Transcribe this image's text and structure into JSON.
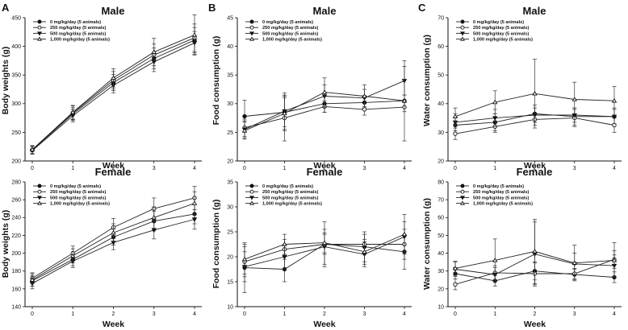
{
  "panel_letters": [
    "A",
    "B",
    "C"
  ],
  "legend_labels": [
    "0 mg/kg/day (5 animals)",
    "250 mg/kg/day (5 animals)",
    "500 mg/kg/day (5 animals)",
    "1,000 mg/kg/day (5 animals)"
  ],
  "chart_data": [
    {
      "type": "line",
      "title": "Male",
      "xlabel": "Week",
      "ylabel": "Body weights (g)",
      "x": [
        0,
        1,
        2,
        3,
        4
      ],
      "ylim": [
        200,
        450
      ],
      "yticks": [
        200,
        250,
        300,
        350,
        400,
        450
      ],
      "legend": "top-left",
      "series": [
        {
          "name": "0 mg/kg/day (5 animals)",
          "marker": "circle-filled",
          "values": [
            219,
            282,
            337,
            379,
            411
          ],
          "errors": [
            7,
            11,
            14,
            18,
            22
          ]
        },
        {
          "name": "250 mg/kg/day (5 animals)",
          "marker": "circle-open",
          "values": [
            219,
            284,
            341,
            385,
            415
          ],
          "errors": [
            7,
            12,
            15,
            19,
            24
          ]
        },
        {
          "name": "500 mg/kg/day (5 animals)",
          "marker": "triangle-down-filled",
          "values": [
            218,
            279,
            332,
            373,
            406
          ],
          "errors": [
            6,
            11,
            13,
            17,
            20
          ]
        },
        {
          "name": "1,000 mg/kg/day (5 animals)",
          "marker": "triangle-up-open",
          "values": [
            220,
            285,
            345,
            390,
            420
          ],
          "errors": [
            7,
            12,
            16,
            24,
            35
          ]
        }
      ]
    },
    {
      "type": "line",
      "title": "Male",
      "xlabel": "Week",
      "ylabel": "Food consumption (g)",
      "x": [
        0,
        1,
        2,
        3,
        4
      ],
      "ylim": [
        20,
        45
      ],
      "yticks": [
        20,
        25,
        30,
        35,
        40,
        45
      ],
      "legend": "top-left",
      "series": [
        {
          "name": "0 mg/kg/day (5 animals)",
          "marker": "circle-filled",
          "values": [
            27.8,
            28.5,
            30.0,
            30.2,
            30.5
          ],
          "errors": [
            2.8,
            2.5,
            1.5,
            1.2,
            1.0
          ]
        },
        {
          "name": "250 mg/kg/day (5 animals)",
          "marker": "circle-open",
          "values": [
            25.8,
            27.5,
            29.5,
            29.0,
            29.4
          ],
          "errors": [
            1.5,
            4.0,
            1.0,
            1.0,
            0.8
          ]
        },
        {
          "name": "500 mg/kg/day (5 animals)",
          "marker": "triangle-down-filled",
          "values": [
            25.5,
            28.7,
            31.3,
            31.0,
            34.0
          ],
          "errors": [
            1.5,
            3.2,
            2.0,
            1.5,
            2.5
          ]
        },
        {
          "name": "1,000 mg/kg/day (5 animals)",
          "marker": "triangle-up-open",
          "values": [
            25.3,
            28.3,
            32.0,
            31.3,
            30.5
          ],
          "errors": [
            1.5,
            3.0,
            2.5,
            2.0,
            7.0
          ]
        }
      ]
    },
    {
      "type": "line",
      "title": "Male",
      "xlabel": "Week",
      "ylabel": "Water consumption (g)",
      "x": [
        0,
        1,
        2,
        3,
        4
      ],
      "ylim": [
        20,
        70
      ],
      "yticks": [
        20,
        30,
        40,
        50,
        60,
        70
      ],
      "legend": "top-left",
      "series": [
        {
          "name": "0 mg/kg/day (5 animals)",
          "marker": "circle-filled",
          "values": [
            32.5,
            33.5,
            36.5,
            35.5,
            35.5
          ],
          "errors": [
            3,
            3,
            3,
            3,
            3
          ]
        },
        {
          "name": "250 mg/kg/day (5 animals)",
          "marker": "circle-open",
          "values": [
            29.5,
            32.0,
            34.5,
            35.0,
            32.5
          ],
          "errors": [
            2,
            2,
            2,
            3,
            2.5
          ]
        },
        {
          "name": "500 mg/kg/day (5 animals)",
          "marker": "triangle-down-filled",
          "values": [
            33.5,
            35.0,
            36.0,
            36.0,
            35.5
          ],
          "errors": [
            3,
            3,
            2.5,
            2.5,
            2.5
          ]
        },
        {
          "name": "1,000 mg/kg/day (5 animals)",
          "marker": "triangle-up-open",
          "values": [
            35.5,
            40.5,
            43.5,
            41.5,
            41.0
          ],
          "errors": [
            3,
            4,
            12,
            6,
            5
          ]
        }
      ]
    },
    {
      "type": "line",
      "title": "Female",
      "xlabel": "Week",
      "ylabel": "Body weights (g)",
      "x": [
        0,
        1,
        2,
        3,
        4
      ],
      "ylim": [
        140,
        280
      ],
      "yticks": [
        140,
        160,
        180,
        200,
        220,
        240,
        260,
        280
      ],
      "legend": "top-left",
      "series": [
        {
          "name": "0 mg/kg/day (5 animals)",
          "marker": "circle-filled",
          "values": [
            169,
            193,
            218,
            236,
            244
          ],
          "errors": [
            6,
            7,
            9,
            11,
            11
          ]
        },
        {
          "name": "250 mg/kg/day (5 animals)",
          "marker": "circle-open",
          "values": [
            172,
            200,
            229,
            250,
            262
          ],
          "errors": [
            6,
            8,
            10,
            12,
            13
          ]
        },
        {
          "name": "500 mg/kg/day (5 animals)",
          "marker": "triangle-down-filled",
          "values": [
            166,
            191,
            212,
            226,
            238
          ],
          "errors": [
            6,
            7,
            8,
            10,
            11
          ]
        },
        {
          "name": "1,000 mg/kg/day (5 animals)",
          "marker": "triangle-up-open",
          "values": [
            170,
            197,
            223,
            240,
            256
          ],
          "errors": [
            7,
            8,
            10,
            12,
            13
          ]
        }
      ]
    },
    {
      "type": "line",
      "title": "Female",
      "xlabel": "Week",
      "ylabel": "Food consumption (g)",
      "x": [
        0,
        1,
        2,
        3,
        4
      ],
      "ylim": [
        10,
        35
      ],
      "yticks": [
        10,
        15,
        20,
        25,
        30,
        35
      ],
      "legend": "top-left",
      "series": [
        {
          "name": "0 mg/kg/day (5 animals)",
          "marker": "circle-filled",
          "values": [
            17.8,
            17.5,
            22.5,
            22.0,
            21.0
          ],
          "errors": [
            5,
            2.5,
            4.5,
            3,
            3.5
          ]
        },
        {
          "name": "250 mg/kg/day (5 animals)",
          "marker": "circle-open",
          "values": [
            19.0,
            21.5,
            22.5,
            22.5,
            22.5
          ],
          "errors": [
            3,
            2,
            2,
            2,
            3
          ]
        },
        {
          "name": "500 mg/kg/day (5 animals)",
          "marker": "triangle-down-filled",
          "values": [
            18.0,
            20.0,
            22.0,
            20.5,
            24.0
          ],
          "errors": [
            3,
            2.5,
            3.5,
            2.5,
            3
          ]
        },
        {
          "name": "1,000 mg/kg/day (5 animals)",
          "marker": "triangle-up-open",
          "values": [
            19.5,
            22.5,
            22.8,
            21.0,
            24.5
          ],
          "errors": [
            3,
            2,
            2,
            2.5,
            4
          ]
        }
      ]
    },
    {
      "type": "line",
      "title": "Female",
      "xlabel": "Week",
      "ylabel": "Water consumption (g)",
      "x": [
        0,
        1,
        2,
        3,
        4
      ],
      "ylim": [
        10,
        80
      ],
      "yticks": [
        10,
        20,
        30,
        40,
        50,
        60,
        70,
        80
      ],
      "legend": "top-left",
      "series": [
        {
          "name": "0 mg/kg/day (5 animals)",
          "marker": "circle-filled",
          "values": [
            28.5,
            24.5,
            30.0,
            28.0,
            26.5
          ],
          "errors": [
            3,
            3,
            5,
            3,
            3
          ]
        },
        {
          "name": "250 mg/kg/day (5 animals)",
          "marker": "circle-open",
          "values": [
            22.5,
            29.0,
            28.5,
            28.5,
            36.5
          ],
          "errors": [
            3,
            4,
            6,
            3,
            5
          ]
        },
        {
          "name": "500 mg/kg/day (5 animals)",
          "marker": "triangle-down-filled",
          "values": [
            31.0,
            28.0,
            39.5,
            34.0,
            33.0
          ],
          "errors": [
            4,
            4,
            18,
            6,
            6
          ]
        },
        {
          "name": "1,000 mg/kg/day (5 animals)",
          "marker": "triangle-up-open",
          "values": [
            31.5,
            36.0,
            41.0,
            34.5,
            36.0
          ],
          "errors": [
            4,
            12,
            18,
            10,
            10
          ]
        }
      ]
    }
  ]
}
